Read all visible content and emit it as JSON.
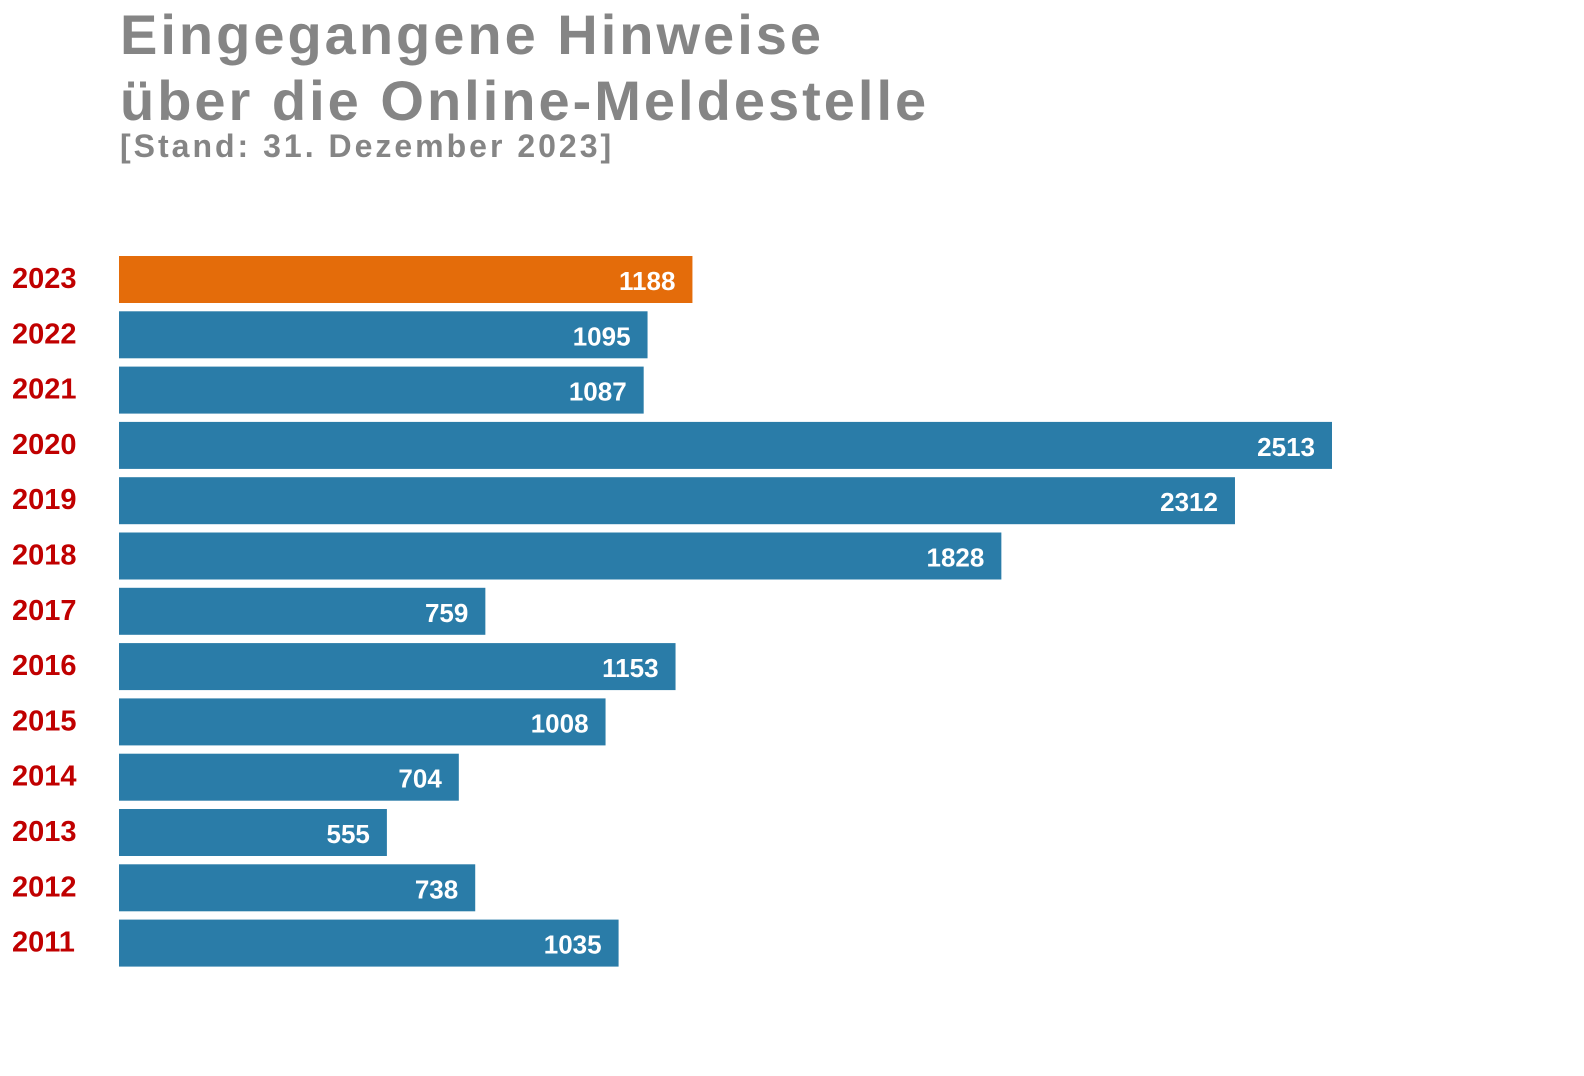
{
  "header": {
    "title_line1": "Eingegangene Hinweise",
    "title_line2": "über die Online-Meldestelle",
    "subtitle": "[Stand: 31. Dezember 2023]"
  },
  "chart_data": {
    "type": "bar",
    "orientation": "horizontal",
    "title": "Eingegangene Hinweise über die Online-Meldestelle",
    "subtitle": "[Stand: 31. Dezember 2023]",
    "categories": [
      "2023",
      "2022",
      "2021",
      "2020",
      "2019",
      "2018",
      "2017",
      "2016",
      "2015",
      "2014",
      "2013",
      "2012",
      "2011"
    ],
    "values": [
      1188,
      1095,
      1087,
      2513,
      2312,
      1828,
      759,
      1153,
      1008,
      704,
      555,
      738,
      1035
    ],
    "highlight_category": "2023",
    "colors": {
      "default": "#2a7ca8",
      "highlight": "#e46c0a",
      "year_label": "#c00000",
      "value_label": "#ffffff",
      "title": "#858585"
    },
    "value_labels": "inside-end",
    "grid": false,
    "axes_visible": false
  }
}
